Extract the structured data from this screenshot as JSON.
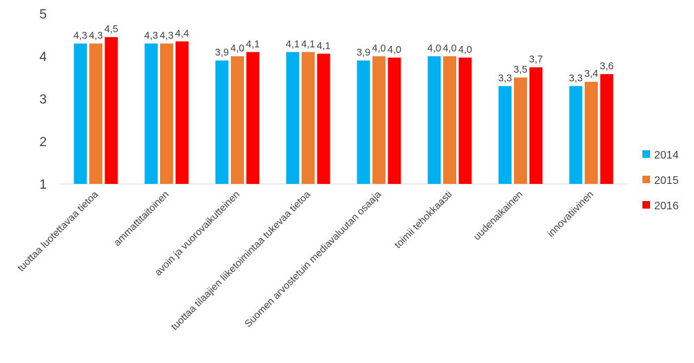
{
  "chart_data": {
    "type": "bar",
    "title": "",
    "xlabel": "",
    "ylabel": "",
    "ylim": [
      1,
      5
    ],
    "yticks": [
      "1",
      "2",
      "3",
      "4",
      "5"
    ],
    "grid": false,
    "legend_position": "right",
    "categories": [
      "tuottaa luotettavaa tietoa",
      "ammattitaitoinen",
      "avoin ja vuorovaikutteinen",
      "tuottaa tilaajien liiketoimintaa tukevaa tietoa",
      "Suomen arvostetuin mediavaluutan osaaja",
      "toimii tehokkaasti",
      "uudenaikainen",
      "innovatiivinen"
    ],
    "series": [
      {
        "name": "2014",
        "color": "#00B0F0",
        "values": [
          4.3,
          4.3,
          3.9,
          4.1,
          3.9,
          4.0,
          3.3,
          3.3
        ],
        "labels": [
          "4,3",
          "4,3",
          "3,9",
          "4,1",
          "3,9",
          "4,0",
          "3,3",
          "3,3"
        ]
      },
      {
        "name": "2015",
        "color": "#ED7D31",
        "values": [
          4.3,
          4.3,
          4.0,
          4.1,
          4.0,
          4.0,
          3.5,
          3.4
        ],
        "labels": [
          "4,3",
          "4,3",
          "4,0",
          "4,1",
          "4,0",
          "4,0",
          "3,5",
          "3,4"
        ]
      },
      {
        "name": "2016",
        "color": "#FF0000",
        "values": [
          4.45,
          4.35,
          4.1,
          4.06,
          3.97,
          3.97,
          3.74,
          3.58
        ],
        "labels": [
          "4,5",
          "4,4",
          "4,1",
          "4,1",
          "4,0",
          "4,0",
          "3,7",
          "3,6"
        ]
      }
    ]
  }
}
